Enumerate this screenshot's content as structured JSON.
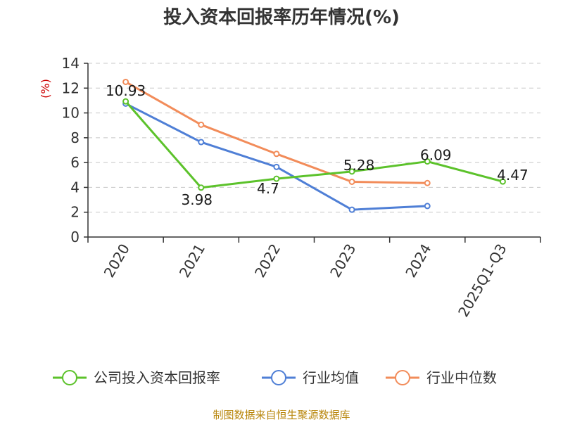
{
  "chart_data": {
    "type": "line",
    "title": "投入资本回报率历年情况(%)",
    "ylabel": "(%)",
    "xlabel": "",
    "categories": [
      "2020",
      "2021",
      "2022",
      "2023",
      "2024",
      "2025Q1-Q3"
    ],
    "ylim": [
      0,
      14
    ],
    "yticks": [
      0,
      2,
      4,
      6,
      8,
      10,
      12,
      14
    ],
    "grid": true,
    "legend_position": "bottom",
    "series": [
      {
        "name": "公司投入资本回报率",
        "color": "#5cc22b",
        "values": [
          10.93,
          3.98,
          4.7,
          5.28,
          6.09,
          4.47
        ],
        "labels": [
          "10.93",
          "3.98",
          "4.7",
          "5.28",
          "6.09",
          "4.47"
        ]
      },
      {
        "name": "行业均值",
        "color": "#4f7fd6",
        "values": [
          10.75,
          7.65,
          5.65,
          2.2,
          2.5,
          null
        ]
      },
      {
        "name": "行业中位数",
        "color": "#f28c5a",
        "values": [
          12.5,
          9.05,
          6.7,
          4.45,
          4.35,
          null
        ]
      }
    ]
  },
  "source_text": "制图数据来自恒生聚源数据库"
}
